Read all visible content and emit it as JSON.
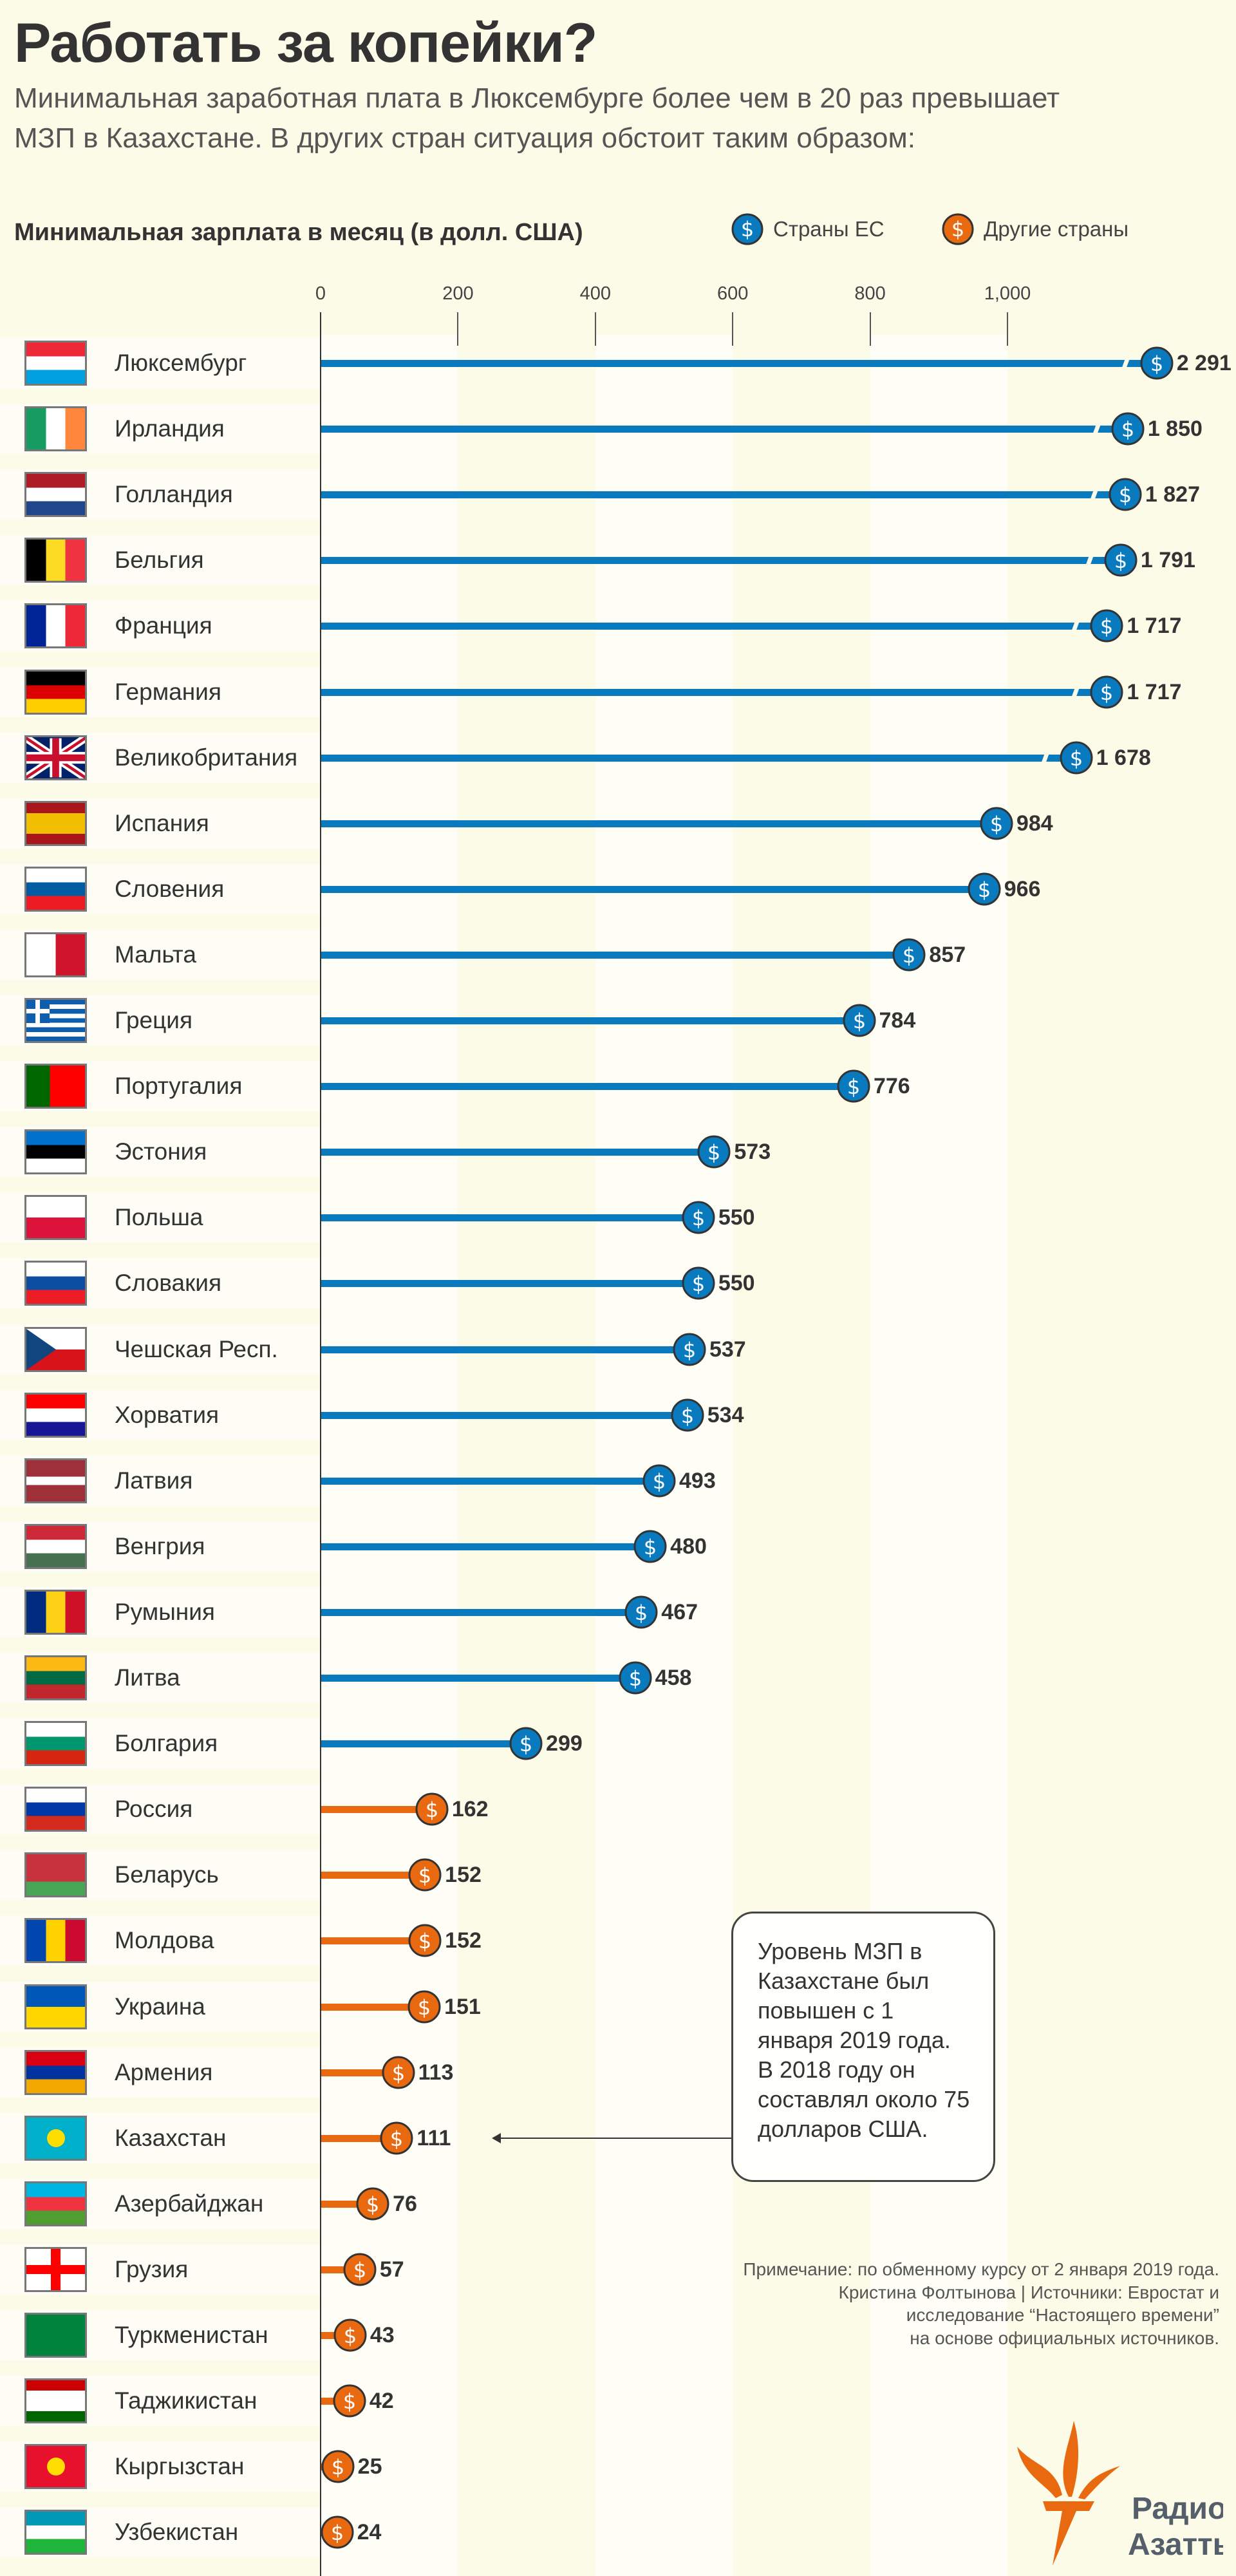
{
  "title": "Работать за копейки?",
  "subtitle_lines": [
    "Минимальная заработная плата в Люксембурге более чем в 20 раз превышает",
    "МЗП в Казахстане. В других стран ситуация обстоит таким образом:"
  ],
  "colors": {
    "eu": "#0a7abf",
    "other": "#e8690f",
    "background": "#fcfbe7"
  },
  "legend": [
    {
      "label": "Страны ЕС",
      "group": "eu",
      "icon": "dollar-coin-icon"
    },
    {
      "label": "Другие страны",
      "group": "other",
      "icon": "dollar-coin-icon"
    }
  ],
  "chart_data": {
    "type": "bar",
    "orientation": "horizontal",
    "title": "Минимальная зарплата в месяц (в долл. США)",
    "x_ticks": [
      "0",
      "200",
      "400",
      "600",
      "800",
      "1,000"
    ],
    "xlim": [
      0,
      1000
    ],
    "axis_break": "bars above ~1 100 are shown truncated",
    "grid": "alternating vertical bands",
    "legend_position": "top-right",
    "rows": [
      {
        "country": "Люксембург",
        "value": 2291,
        "label": "2 291",
        "group": "eu",
        "flag": {
          "dir": "h",
          "colors": [
            "#ed2939",
            "#ffffff",
            "#00a1de"
          ]
        }
      },
      {
        "country": "Ирландия",
        "value": 1850,
        "label": "1 850",
        "group": "eu",
        "flag": {
          "dir": "v",
          "colors": [
            "#169b62",
            "#ffffff",
            "#ff883e"
          ]
        }
      },
      {
        "country": "Голландия",
        "value": 1827,
        "label": "1 827",
        "group": "eu",
        "flag": {
          "dir": "h",
          "colors": [
            "#ae1c28",
            "#ffffff",
            "#21468b"
          ]
        }
      },
      {
        "country": "Бельгия",
        "value": 1791,
        "label": "1 791",
        "group": "eu",
        "flag": {
          "dir": "v",
          "colors": [
            "#000000",
            "#fdda24",
            "#ef3340"
          ]
        }
      },
      {
        "country": "Франция",
        "value": 1717,
        "label": "1 717",
        "group": "eu",
        "flag": {
          "dir": "v",
          "colors": [
            "#002395",
            "#ffffff",
            "#ed2939"
          ]
        }
      },
      {
        "country": "Германия",
        "value": 1717,
        "label": "1 717",
        "group": "eu",
        "flag": {
          "dir": "h",
          "colors": [
            "#000000",
            "#dd0000",
            "#ffce00"
          ]
        }
      },
      {
        "country": "Великобритания",
        "value": 1678,
        "label": "1 678",
        "group": "eu",
        "flag": {
          "dir": "h",
          "colors": [
            "#012169"
          ],
          "overlay": "union"
        }
      },
      {
        "country": "Испания",
        "value": 984,
        "label": "984",
        "group": "eu",
        "flag": {
          "dir": "h",
          "colors": [
            "#aa151b",
            "#f1bf00",
            "#f1bf00",
            "#aa151b"
          ]
        }
      },
      {
        "country": "Словения",
        "value": 966,
        "label": "966",
        "group": "eu",
        "flag": {
          "dir": "h",
          "colors": [
            "#ffffff",
            "#005da4",
            "#ed1c24"
          ]
        }
      },
      {
        "country": "Мальта",
        "value": 857,
        "label": "857",
        "group": "eu",
        "flag": {
          "dir": "v",
          "colors": [
            "#ffffff",
            "#cf142b"
          ]
        }
      },
      {
        "country": "Греция",
        "value": 784,
        "label": "784",
        "group": "eu",
        "flag": {
          "dir": "h",
          "colors": [
            "#0d5eaf",
            "#ffffff",
            "#0d5eaf",
            "#ffffff",
            "#0d5eaf",
            "#ffffff",
            "#0d5eaf",
            "#ffffff",
            "#0d5eaf"
          ],
          "overlay": "greek"
        }
      },
      {
        "country": "Португалия",
        "value": 776,
        "label": "776",
        "group": "eu",
        "flag": {
          "dir": "v",
          "colors": [
            "#006600",
            "#006600",
            "#ff0000",
            "#ff0000",
            "#ff0000"
          ]
        }
      },
      {
        "country": "Эстония",
        "value": 573,
        "label": "573",
        "group": "eu",
        "flag": {
          "dir": "h",
          "colors": [
            "#0072ce",
            "#000000",
            "#ffffff"
          ]
        }
      },
      {
        "country": "Польша",
        "value": 550,
        "label": "550",
        "group": "eu",
        "flag": {
          "dir": "h",
          "colors": [
            "#ffffff",
            "#dc143c"
          ]
        }
      },
      {
        "country": "Словакия",
        "value": 550,
        "label": "550",
        "group": "eu",
        "flag": {
          "dir": "h",
          "colors": [
            "#ffffff",
            "#0b4ea2",
            "#ee1c25"
          ]
        }
      },
      {
        "country": "Чешская Респ.",
        "value": 537,
        "label": "537",
        "group": "eu",
        "flag": {
          "dir": "h",
          "colors": [
            "#ffffff",
            "#d7141a"
          ],
          "overlay": "czech"
        }
      },
      {
        "country": "Хорватия",
        "value": 534,
        "label": "534",
        "group": "eu",
        "flag": {
          "dir": "h",
          "colors": [
            "#ff0000",
            "#ffffff",
            "#171796"
          ]
        }
      },
      {
        "country": "Латвия",
        "value": 493,
        "label": "493",
        "group": "eu",
        "flag": {
          "dir": "h",
          "colors": [
            "#9e3039",
            "#9e3039",
            "#ffffff",
            "#9e3039",
            "#9e3039"
          ]
        }
      },
      {
        "country": "Венгрия",
        "value": 480,
        "label": "480",
        "group": "eu",
        "flag": {
          "dir": "h",
          "colors": [
            "#ce2939",
            "#ffffff",
            "#477050"
          ]
        }
      },
      {
        "country": "Румыния",
        "value": 467,
        "label": "467",
        "group": "eu",
        "flag": {
          "dir": "v",
          "colors": [
            "#002b7f",
            "#fcd116",
            "#ce1126"
          ]
        }
      },
      {
        "country": "Литва",
        "value": 458,
        "label": "458",
        "group": "eu",
        "flag": {
          "dir": "h",
          "colors": [
            "#fdb913",
            "#006a44",
            "#c1272d"
          ]
        }
      },
      {
        "country": "Болгария",
        "value": 299,
        "label": "299",
        "group": "eu",
        "flag": {
          "dir": "h",
          "colors": [
            "#ffffff",
            "#00966e",
            "#d62612"
          ]
        }
      },
      {
        "country": "Россия",
        "value": 162,
        "label": "162",
        "group": "other",
        "flag": {
          "dir": "h",
          "colors": [
            "#ffffff",
            "#0039a6",
            "#d52b1e"
          ]
        }
      },
      {
        "country": "Беларусь",
        "value": 152,
        "label": "152",
        "group": "other",
        "flag": {
          "dir": "h",
          "colors": [
            "#c8313e",
            "#c8313e",
            "#4aa657"
          ]
        }
      },
      {
        "country": "Молдова",
        "value": 152,
        "label": "152",
        "group": "other",
        "flag": {
          "dir": "v",
          "colors": [
            "#0046ae",
            "#ffd200",
            "#cc092f"
          ]
        }
      },
      {
        "country": "Украина",
        "value": 151,
        "label": "151",
        "group": "other",
        "flag": {
          "dir": "h",
          "colors": [
            "#0057b7",
            "#ffd700"
          ]
        }
      },
      {
        "country": "Армения",
        "value": 113,
        "label": "113",
        "group": "other",
        "flag": {
          "dir": "h",
          "colors": [
            "#d90012",
            "#0033a0",
            "#f2a800"
          ]
        }
      },
      {
        "country": "Казахстан",
        "value": 111,
        "label": "111",
        "group": "other",
        "flag": {
          "dir": "h",
          "colors": [
            "#00afca"
          ],
          "overlay": "sun"
        }
      },
      {
        "country": "Азербайджан",
        "value": 76,
        "label": "76",
        "group": "other",
        "flag": {
          "dir": "h",
          "colors": [
            "#00b5e2",
            "#ef3340",
            "#509e2f"
          ]
        }
      },
      {
        "country": "Грузия",
        "value": 57,
        "label": "57",
        "group": "other",
        "flag": {
          "dir": "h",
          "colors": [
            "#ffffff"
          ],
          "overlay": "cross"
        }
      },
      {
        "country": "Туркменистан",
        "value": 43,
        "label": "43",
        "group": "other",
        "flag": {
          "dir": "h",
          "colors": [
            "#00843d"
          ]
        }
      },
      {
        "country": "Таджикистан",
        "value": 42,
        "label": "42",
        "group": "other",
        "flag": {
          "dir": "h",
          "colors": [
            "#cc0000",
            "#ffffff",
            "#ffffff",
            "#006600"
          ]
        }
      },
      {
        "country": "Кыргызстан",
        "value": 25,
        "label": "25",
        "group": "other",
        "flag": {
          "dir": "h",
          "colors": [
            "#e8112d"
          ],
          "overlay": "sun"
        }
      },
      {
        "country": "Узбекистан",
        "value": 24,
        "label": "24",
        "group": "other",
        "flag": {
          "dir": "h",
          "colors": [
            "#0099b5",
            "#ffffff",
            "#1eb53a"
          ]
        }
      }
    ]
  },
  "annotation": {
    "lines": [
      "Уровень МЗП в",
      "Казахстане был",
      "повышен с 1",
      "января 2019 года.",
      "В 2018 году он",
      "составлял около 75",
      "долларов США."
    ],
    "points_to": "Казахстан"
  },
  "footnote": [
    "Примечание: по обменному курсу от  2 января 2019 года.",
    "Кристина Фолтынова | Источники: Евростат и",
    "исследование “Настоящего времени”",
    "на основе официальных источников."
  ],
  "logo": {
    "line1": "Радио",
    "line2": "Азаттык"
  }
}
